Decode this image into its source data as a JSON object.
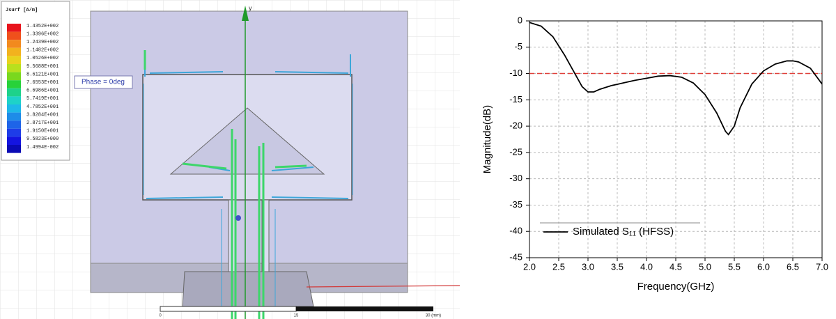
{
  "simulation": {
    "legend_title": "Jsurf [A/m]",
    "legend_values": [
      "1.4352E+002",
      "1.3396E+002",
      "1.2439E+002",
      "1.1482E+002",
      "1.0526E+002",
      "9.5688E+001",
      "8.6121E+001",
      "7.6553E+001",
      "6.6986E+001",
      "5.7419E+001",
      "4.7852E+001",
      "3.8284E+001",
      "2.8717E+001",
      "1.9150E+001",
      "9.5823E+000",
      "1.4994E-002"
    ],
    "phase_label": "Phase = 0deg",
    "axis_label": "y",
    "scale_labels": [
      "0",
      "15",
      "30 (mm)"
    ]
  },
  "chart_data": {
    "type": "line",
    "x_label": "Frequency(GHz)",
    "y_label": "Magnitude(dB)",
    "x": [
      2.0,
      2.2,
      2.4,
      2.6,
      2.8,
      2.9,
      3.0,
      3.1,
      3.2,
      3.4,
      3.6,
      3.8,
      4.0,
      4.2,
      4.4,
      4.6,
      4.8,
      5.0,
      5.2,
      5.35,
      5.4,
      5.5,
      5.6,
      5.8,
      6.0,
      6.2,
      6.4,
      6.5,
      6.6,
      6.8,
      7.0
    ],
    "series": [
      {
        "name": "Simulated S₁₁ (HFSS)",
        "color": "#000000",
        "values": [
          -0.3,
          -1,
          -3,
          -6.5,
          -10.5,
          -12.5,
          -13.5,
          -13.5,
          -13,
          -12.3,
          -11.8,
          -11.3,
          -10.9,
          -10.5,
          -10.4,
          -10.7,
          -11.8,
          -14,
          -17.5,
          -21,
          -21.6,
          -20,
          -16.5,
          -12,
          -9.5,
          -8.2,
          -7.6,
          -7.6,
          -7.8,
          -9,
          -12
        ]
      }
    ],
    "reference_line": {
      "value": -10,
      "color": "#e0403a"
    },
    "xlim": [
      2.0,
      7.0
    ],
    "xticks": [
      {
        "value": 2,
        "label": "2.0"
      },
      {
        "value": 2.5,
        "label": "2.5"
      },
      {
        "value": 3,
        "label": "3.0"
      },
      {
        "value": 3.5,
        "label": "3.5"
      },
      {
        "value": 4,
        "label": "4.0"
      },
      {
        "value": 4.5,
        "label": "4.5"
      },
      {
        "value": 5,
        "label": "5.0"
      },
      {
        "value": 5.5,
        "label": "5.5"
      },
      {
        "value": 6,
        "label": "6.0"
      },
      {
        "value": 6.5,
        "label": "6.5"
      },
      {
        "value": 7,
        "label": "7.0"
      }
    ],
    "ylim": [
      -45,
      0
    ],
    "yticks": [
      0,
      -5,
      -10,
      -15,
      -20,
      -25,
      -30,
      -35,
      -40,
      -45
    ],
    "grid": true,
    "legend": "lower left"
  }
}
